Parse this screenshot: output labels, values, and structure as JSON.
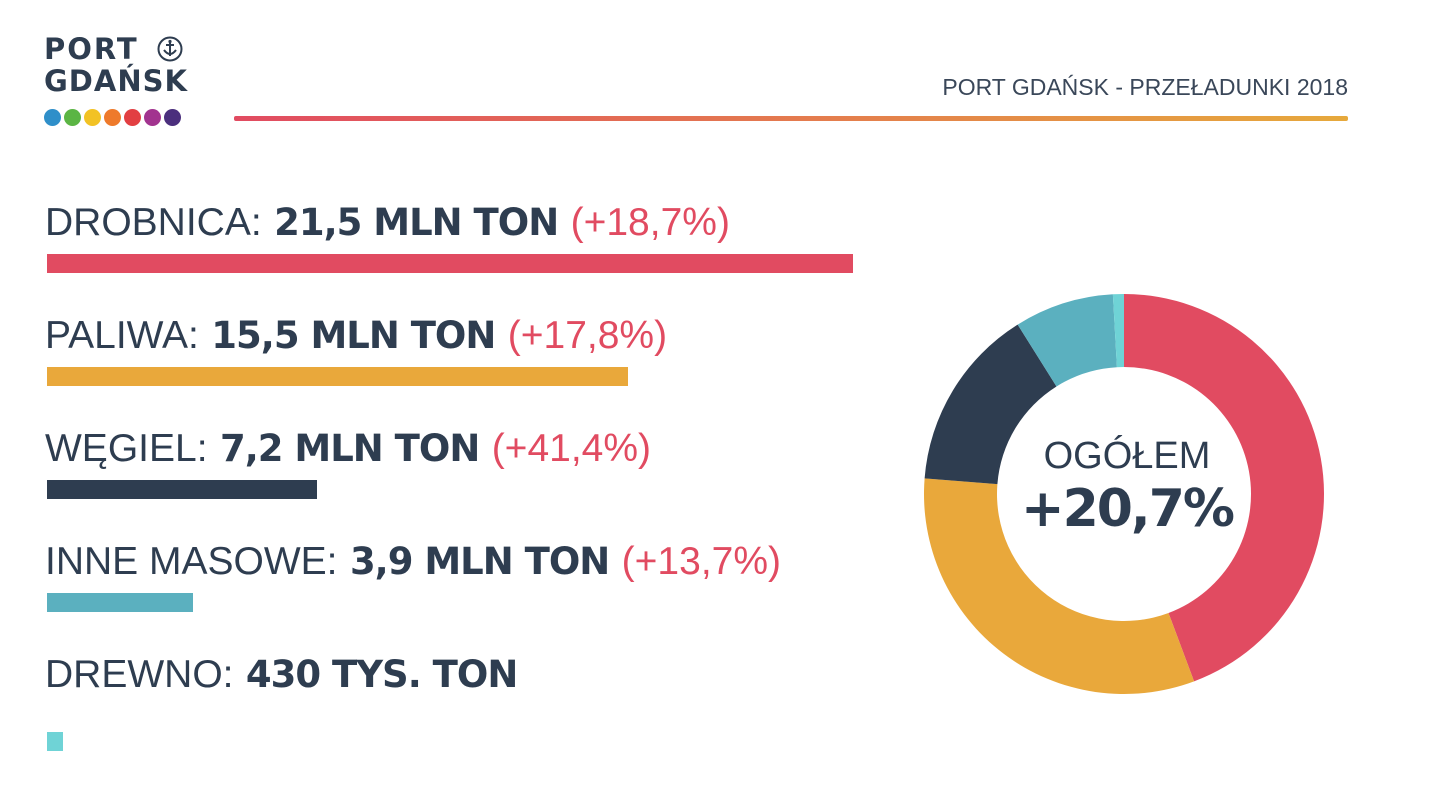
{
  "logo": {
    "line1": "PORT",
    "line2": "GDAŃSK",
    "dot_colors": [
      "#2f8fc9",
      "#5bb544",
      "#f2c224",
      "#ee7a2b",
      "#e23f42",
      "#a2338f",
      "#4b2f7d"
    ]
  },
  "header": {
    "title": "PORT GDAŃSK - PRZEŁADUNKI 2018",
    "rule_gradient": [
      "#e14b61",
      "#e6a93c"
    ]
  },
  "chart_data": {
    "type": "bar",
    "unit_note": "",
    "series": [
      {
        "name": "DROBNICA",
        "name_label": "DROBNICA:",
        "value_label": "21,5  MLN TON",
        "change_label": "(+18,7%)",
        "value": 21.5,
        "color": "#e14b61"
      },
      {
        "name": "PALIWA",
        "name_label": "PALIWA:",
        "value_label": "15,5 MLN TON",
        "change_label": "(+17,8%)",
        "value": 15.5,
        "color": "#e9a83b"
      },
      {
        "name": "WĘGIEL",
        "name_label": "WĘGIEL:",
        "value_label": "7,2 MLN TON",
        "change_label": "(+41,4%)",
        "value": 7.2,
        "color": "#2e3d50"
      },
      {
        "name": "INNE MASOWE",
        "name_label": "INNE MASOWE:",
        "value_label": "3,9 MLN TON",
        "change_label": "(+13,7%)",
        "value": 3.9,
        "color": "#5bb0bf"
      },
      {
        "name": "DREWNO",
        "name_label": "DREWNO:",
        "value_label": "430 TYS. TON",
        "change_label": "",
        "value": 0.43,
        "color": "#6fd3d6"
      }
    ],
    "change_color": "#e14b61",
    "donut": {
      "type": "pie",
      "label": "OGÓŁEM",
      "value_label": "+20,7%",
      "start_angle_deg": 0,
      "direction": "clockwise"
    }
  }
}
